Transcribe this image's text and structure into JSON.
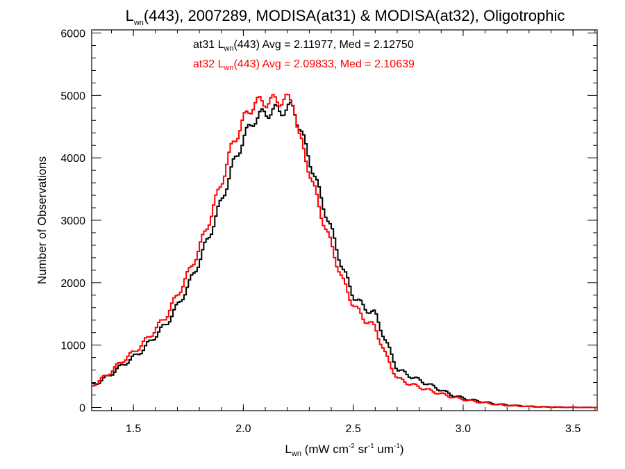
{
  "chart_data": {
    "type": "line",
    "title_parts": {
      "base": "L",
      "sub": "wn",
      "rest": "(443), 2007289, MODISA(at31) & MODISA(at32), Oligotrophic"
    },
    "xlabel_parts": {
      "base": "L",
      "sub": "wn",
      "t1": " (mW cm",
      "s1": "-2",
      "t2": " sr",
      "s2": "-1",
      "t3": " um",
      "s3": "-1",
      "t4": ")"
    },
    "ylabel": "Number of Observations",
    "xlim": [
      1.31,
      3.61
    ],
    "ylim": [
      -50,
      6050
    ],
    "x_ticks": [
      1.5,
      2.0,
      2.5,
      3.0,
      3.5
    ],
    "x_tick_labels": [
      "1.5",
      "2.0",
      "2.5",
      "3.0",
      "3.5"
    ],
    "y_ticks": [
      0,
      1000,
      2000,
      3000,
      4000,
      5000,
      6000
    ],
    "y_tick_labels": [
      "0",
      "1000",
      "2000",
      "3000",
      "4000",
      "5000",
      "6000"
    ],
    "grid": false,
    "bin_width": 0.01,
    "series": [
      {
        "name": "at31",
        "color": "#000000",
        "stat_label": {
          "prefix": "at31 L",
          "sub": "wn",
          "rest": "(443) Avg = 2.11977, Med = 2.12750"
        },
        "knots": [
          [
            1.31,
            360
          ],
          [
            1.35,
            420
          ],
          [
            1.4,
            540
          ],
          [
            1.45,
            680
          ],
          [
            1.5,
            800
          ],
          [
            1.55,
            950
          ],
          [
            1.6,
            1150
          ],
          [
            1.65,
            1340
          ],
          [
            1.7,
            1620
          ],
          [
            1.75,
            1950
          ],
          [
            1.8,
            2350
          ],
          [
            1.85,
            2800
          ],
          [
            1.9,
            3300
          ],
          [
            1.95,
            3850
          ],
          [
            2.0,
            4300
          ],
          [
            2.05,
            4620
          ],
          [
            2.1,
            4720
          ],
          [
            2.15,
            4760
          ],
          [
            2.2,
            4770
          ],
          [
            2.23,
            4820
          ],
          [
            2.25,
            4550
          ],
          [
            2.3,
            4000
          ],
          [
            2.35,
            3400
          ],
          [
            2.4,
            2850
          ],
          [
            2.45,
            2250
          ],
          [
            2.5,
            1800
          ],
          [
            2.55,
            1600
          ],
          [
            2.6,
            1500
          ],
          [
            2.65,
            1050
          ],
          [
            2.7,
            620
          ],
          [
            2.75,
            520
          ],
          [
            2.8,
            440
          ],
          [
            2.85,
            360
          ],
          [
            2.9,
            280
          ],
          [
            2.95,
            200
          ],
          [
            3.0,
            150
          ],
          [
            3.05,
            115
          ],
          [
            3.1,
            85
          ],
          [
            3.15,
            55
          ],
          [
            3.2,
            40
          ],
          [
            3.25,
            28
          ],
          [
            3.3,
            18
          ],
          [
            3.35,
            12
          ],
          [
            3.4,
            8
          ],
          [
            3.45,
            5
          ],
          [
            3.5,
            3
          ],
          [
            3.55,
            2
          ],
          [
            3.6,
            1
          ]
        ]
      },
      {
        "name": "at32",
        "color": "#ff0000",
        "stat_label": {
          "prefix": "at32 L",
          "sub": "wn",
          "rest": "(443) Avg = 2.09833, Med = 2.10639"
        },
        "knots": [
          [
            1.31,
            340
          ],
          [
            1.35,
            440
          ],
          [
            1.4,
            580
          ],
          [
            1.45,
            750
          ],
          [
            1.5,
            880
          ],
          [
            1.55,
            1050
          ],
          [
            1.6,
            1250
          ],
          [
            1.65,
            1470
          ],
          [
            1.7,
            1800
          ],
          [
            1.75,
            2150
          ],
          [
            1.8,
            2550
          ],
          [
            1.85,
            3050
          ],
          [
            1.9,
            3600
          ],
          [
            1.95,
            4200
          ],
          [
            2.0,
            4600
          ],
          [
            2.05,
            4880
          ],
          [
            2.1,
            4900
          ],
          [
            2.15,
            4920
          ],
          [
            2.2,
            4930
          ],
          [
            2.23,
            4900
          ],
          [
            2.25,
            4400
          ],
          [
            2.3,
            3800
          ],
          [
            2.35,
            3150
          ],
          [
            2.4,
            2600
          ],
          [
            2.45,
            2050
          ],
          [
            2.5,
            1650
          ],
          [
            2.55,
            1420
          ],
          [
            2.6,
            1280
          ],
          [
            2.65,
            820
          ],
          [
            2.7,
            470
          ],
          [
            2.75,
            390
          ],
          [
            2.8,
            330
          ],
          [
            2.85,
            270
          ],
          [
            2.9,
            220
          ],
          [
            2.95,
            170
          ],
          [
            3.0,
            130
          ],
          [
            3.05,
            100
          ],
          [
            3.1,
            75
          ],
          [
            3.15,
            50
          ],
          [
            3.2,
            35
          ],
          [
            3.25,
            25
          ],
          [
            3.3,
            16
          ],
          [
            3.35,
            10
          ],
          [
            3.4,
            7
          ],
          [
            3.45,
            4
          ],
          [
            3.5,
            3
          ],
          [
            3.55,
            2
          ],
          [
            3.6,
            1
          ]
        ]
      }
    ]
  }
}
